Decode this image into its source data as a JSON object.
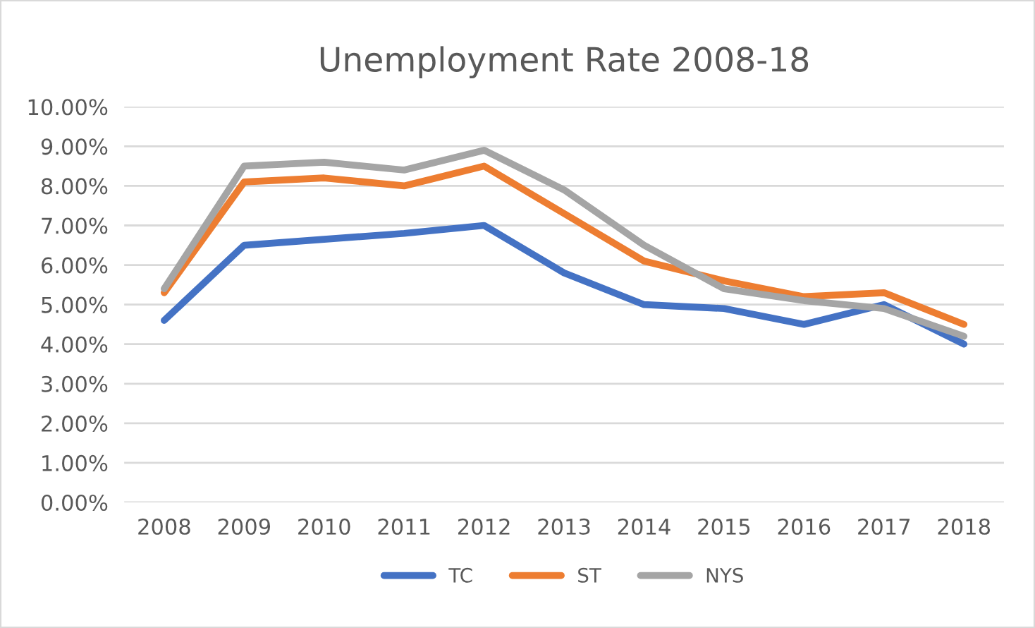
{
  "chart_data": {
    "type": "line",
    "title": "Unemployment Rate 2008-18",
    "categories": [
      "2008",
      "2009",
      "2010",
      "2011",
      "2012",
      "2013",
      "2014",
      "2015",
      "2016",
      "2017",
      "2018"
    ],
    "series": [
      {
        "name": "TC",
        "color": "#4472c4",
        "values": [
          4.6,
          6.5,
          6.65,
          6.8,
          7.0,
          5.8,
          5.0,
          4.9,
          4.5,
          5.0,
          4.0
        ]
      },
      {
        "name": "ST",
        "color": "#ed7d31",
        "values": [
          5.3,
          8.1,
          8.2,
          8.0,
          8.5,
          7.3,
          6.1,
          5.6,
          5.2,
          5.3,
          4.5
        ]
      },
      {
        "name": "NYS",
        "color": "#a5a5a5",
        "values": [
          5.4,
          8.5,
          8.6,
          8.4,
          8.9,
          7.9,
          6.5,
          5.4,
          5.1,
          4.9,
          4.2
        ]
      }
    ],
    "ylim": [
      0,
      10
    ],
    "yticks": [
      {
        "value": 0,
        "label": "0.00%"
      },
      {
        "value": 1,
        "label": "1.00%"
      },
      {
        "value": 2,
        "label": "2.00%"
      },
      {
        "value": 3,
        "label": "3.00%"
      },
      {
        "value": 4,
        "label": "4.00%"
      },
      {
        "value": 5,
        "label": "5.00%"
      },
      {
        "value": 6,
        "label": "6.00%"
      },
      {
        "value": 7,
        "label": "7.00%"
      },
      {
        "value": 8,
        "label": "8.00%"
      },
      {
        "value": 9,
        "label": "9.00%"
      },
      {
        "value": 10,
        "label": "10.00%"
      }
    ],
    "grid": "y",
    "legend": "bottom",
    "marker": "none",
    "line_style": "solid"
  }
}
